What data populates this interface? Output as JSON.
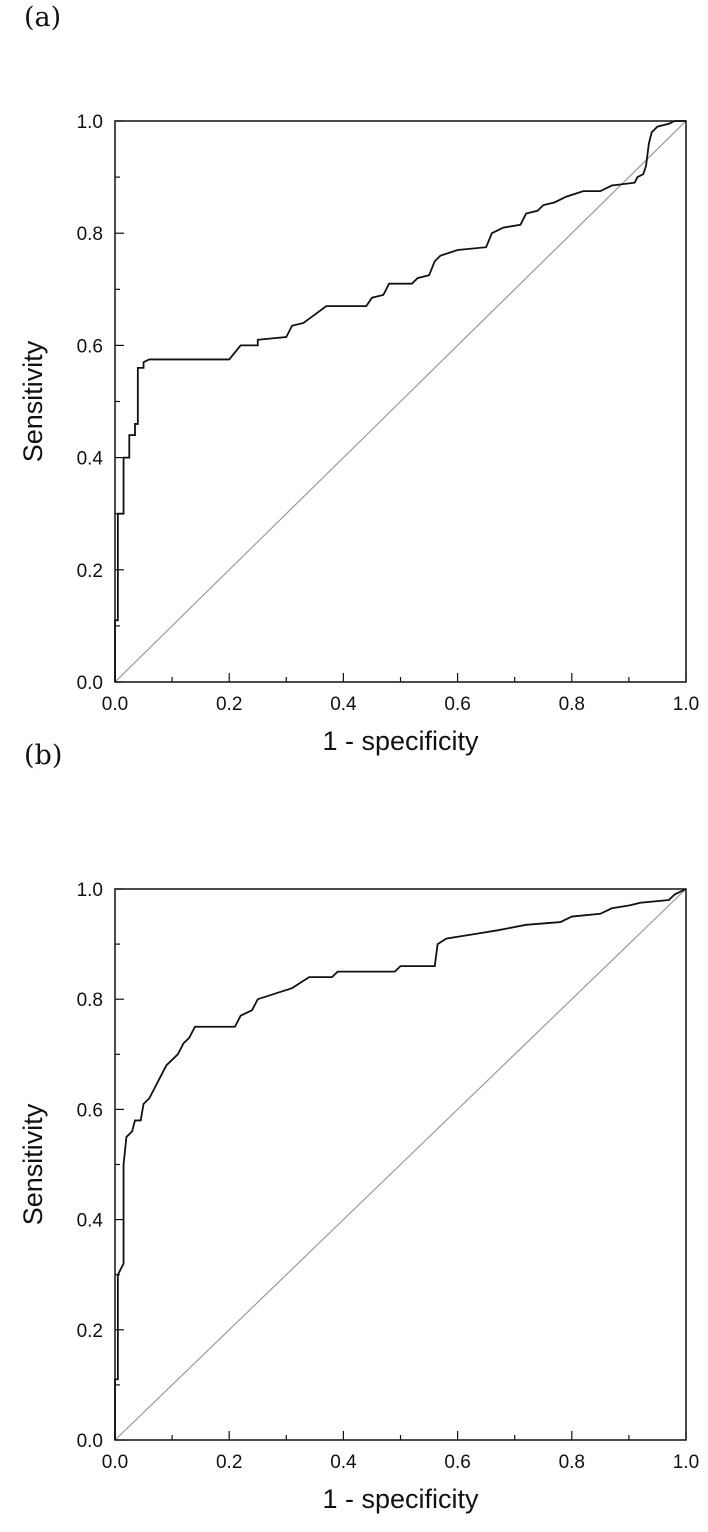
{
  "chart_data": [
    {
      "type": "line",
      "panel_label": "(a)",
      "xlabel": "1 - specificity",
      "ylabel": "Sensitivity",
      "xlim": [
        0,
        1
      ],
      "ylim": [
        0,
        1
      ],
      "x_ticks": [
        "0.0",
        "0.2",
        "0.4",
        "0.6",
        "0.8",
        "1.0"
      ],
      "y_ticks": [
        "0.0",
        "0.2",
        "0.4",
        "0.6",
        "0.8",
        "1.0"
      ],
      "grid": false,
      "reference_line": {
        "x": [
          0,
          1
        ],
        "y": [
          0,
          1
        ],
        "color": "#9a9a9a"
      },
      "series": [
        {
          "color": "#111111",
          "points": [
            [
              0,
              0
            ],
            [
              0,
              0.11
            ],
            [
              0.005,
              0.11
            ],
            [
              0.005,
              0.3
            ],
            [
              0.015,
              0.3
            ],
            [
              0.015,
              0.4
            ],
            [
              0.025,
              0.4
            ],
            [
              0.025,
              0.44
            ],
            [
              0.035,
              0.44
            ],
            [
              0.035,
              0.46
            ],
            [
              0.04,
              0.46
            ],
            [
              0.04,
              0.56
            ],
            [
              0.05,
              0.56
            ],
            [
              0.05,
              0.57
            ],
            [
              0.06,
              0.575
            ],
            [
              0.2,
              0.575
            ],
            [
              0.22,
              0.6
            ],
            [
              0.25,
              0.6
            ],
            [
              0.25,
              0.61
            ],
            [
              0.3,
              0.615
            ],
            [
              0.31,
              0.635
            ],
            [
              0.33,
              0.64
            ],
            [
              0.35,
              0.655
            ],
            [
              0.37,
              0.67
            ],
            [
              0.44,
              0.67
            ],
            [
              0.45,
              0.685
            ],
            [
              0.47,
              0.69
            ],
            [
              0.48,
              0.71
            ],
            [
              0.52,
              0.71
            ],
            [
              0.53,
              0.72
            ],
            [
              0.55,
              0.725
            ],
            [
              0.56,
              0.75
            ],
            [
              0.57,
              0.76
            ],
            [
              0.6,
              0.77
            ],
            [
              0.65,
              0.775
            ],
            [
              0.66,
              0.8
            ],
            [
              0.68,
              0.81
            ],
            [
              0.71,
              0.815
            ],
            [
              0.72,
              0.835
            ],
            [
              0.74,
              0.84
            ],
            [
              0.75,
              0.85
            ],
            [
              0.77,
              0.855
            ],
            [
              0.79,
              0.865
            ],
            [
              0.82,
              0.875
            ],
            [
              0.85,
              0.875
            ],
            [
              0.87,
              0.885
            ],
            [
              0.91,
              0.89
            ],
            [
              0.915,
              0.9
            ],
            [
              0.925,
              0.905
            ],
            [
              0.93,
              0.92
            ],
            [
              0.935,
              0.96
            ],
            [
              0.94,
              0.98
            ],
            [
              0.95,
              0.99
            ],
            [
              0.97,
              0.995
            ],
            [
              0.98,
              1.0
            ],
            [
              1.0,
              1.0
            ]
          ]
        }
      ]
    },
    {
      "type": "line",
      "panel_label": "(b)",
      "xlabel": "1 - specificity",
      "ylabel": "Sensitivity",
      "xlim": [
        0,
        1
      ],
      "ylim": [
        0,
        1
      ],
      "x_ticks": [
        "0.0",
        "0.2",
        "0.4",
        "0.6",
        "0.8",
        "1.0"
      ],
      "y_ticks": [
        "0.0",
        "0.2",
        "0.4",
        "0.6",
        "0.8",
        "1.0"
      ],
      "grid": false,
      "reference_line": {
        "x": [
          0,
          1
        ],
        "y": [
          0,
          1
        ],
        "color": "#9a9a9a"
      },
      "series": [
        {
          "color": "#111111",
          "points": [
            [
              0,
              0
            ],
            [
              0,
              0.11
            ],
            [
              0.005,
              0.11
            ],
            [
              0.005,
              0.3
            ],
            [
              0.01,
              0.31
            ],
            [
              0.015,
              0.32
            ],
            [
              0.015,
              0.5
            ],
            [
              0.02,
              0.55
            ],
            [
              0.03,
              0.56
            ],
            [
              0.035,
              0.58
            ],
            [
              0.045,
              0.58
            ],
            [
              0.05,
              0.61
            ],
            [
              0.06,
              0.62
            ],
            [
              0.07,
              0.64
            ],
            [
              0.08,
              0.66
            ],
            [
              0.09,
              0.68
            ],
            [
              0.1,
              0.69
            ],
            [
              0.11,
              0.7
            ],
            [
              0.12,
              0.72
            ],
            [
              0.13,
              0.73
            ],
            [
              0.14,
              0.75
            ],
            [
              0.21,
              0.75
            ],
            [
              0.22,
              0.77
            ],
            [
              0.24,
              0.78
            ],
            [
              0.25,
              0.8
            ],
            [
              0.28,
              0.81
            ],
            [
              0.31,
              0.82
            ],
            [
              0.34,
              0.84
            ],
            [
              0.38,
              0.84
            ],
            [
              0.39,
              0.85
            ],
            [
              0.49,
              0.85
            ],
            [
              0.5,
              0.86
            ],
            [
              0.56,
              0.86
            ],
            [
              0.565,
              0.9
            ],
            [
              0.58,
              0.91
            ],
            [
              0.64,
              0.92
            ],
            [
              0.67,
              0.925
            ],
            [
              0.72,
              0.935
            ],
            [
              0.78,
              0.94
            ],
            [
              0.8,
              0.95
            ],
            [
              0.85,
              0.955
            ],
            [
              0.87,
              0.965
            ],
            [
              0.9,
              0.97
            ],
            [
              0.92,
              0.975
            ],
            [
              0.97,
              0.98
            ],
            [
              0.98,
              0.99
            ],
            [
              1.0,
              1.0
            ]
          ]
        }
      ]
    }
  ]
}
